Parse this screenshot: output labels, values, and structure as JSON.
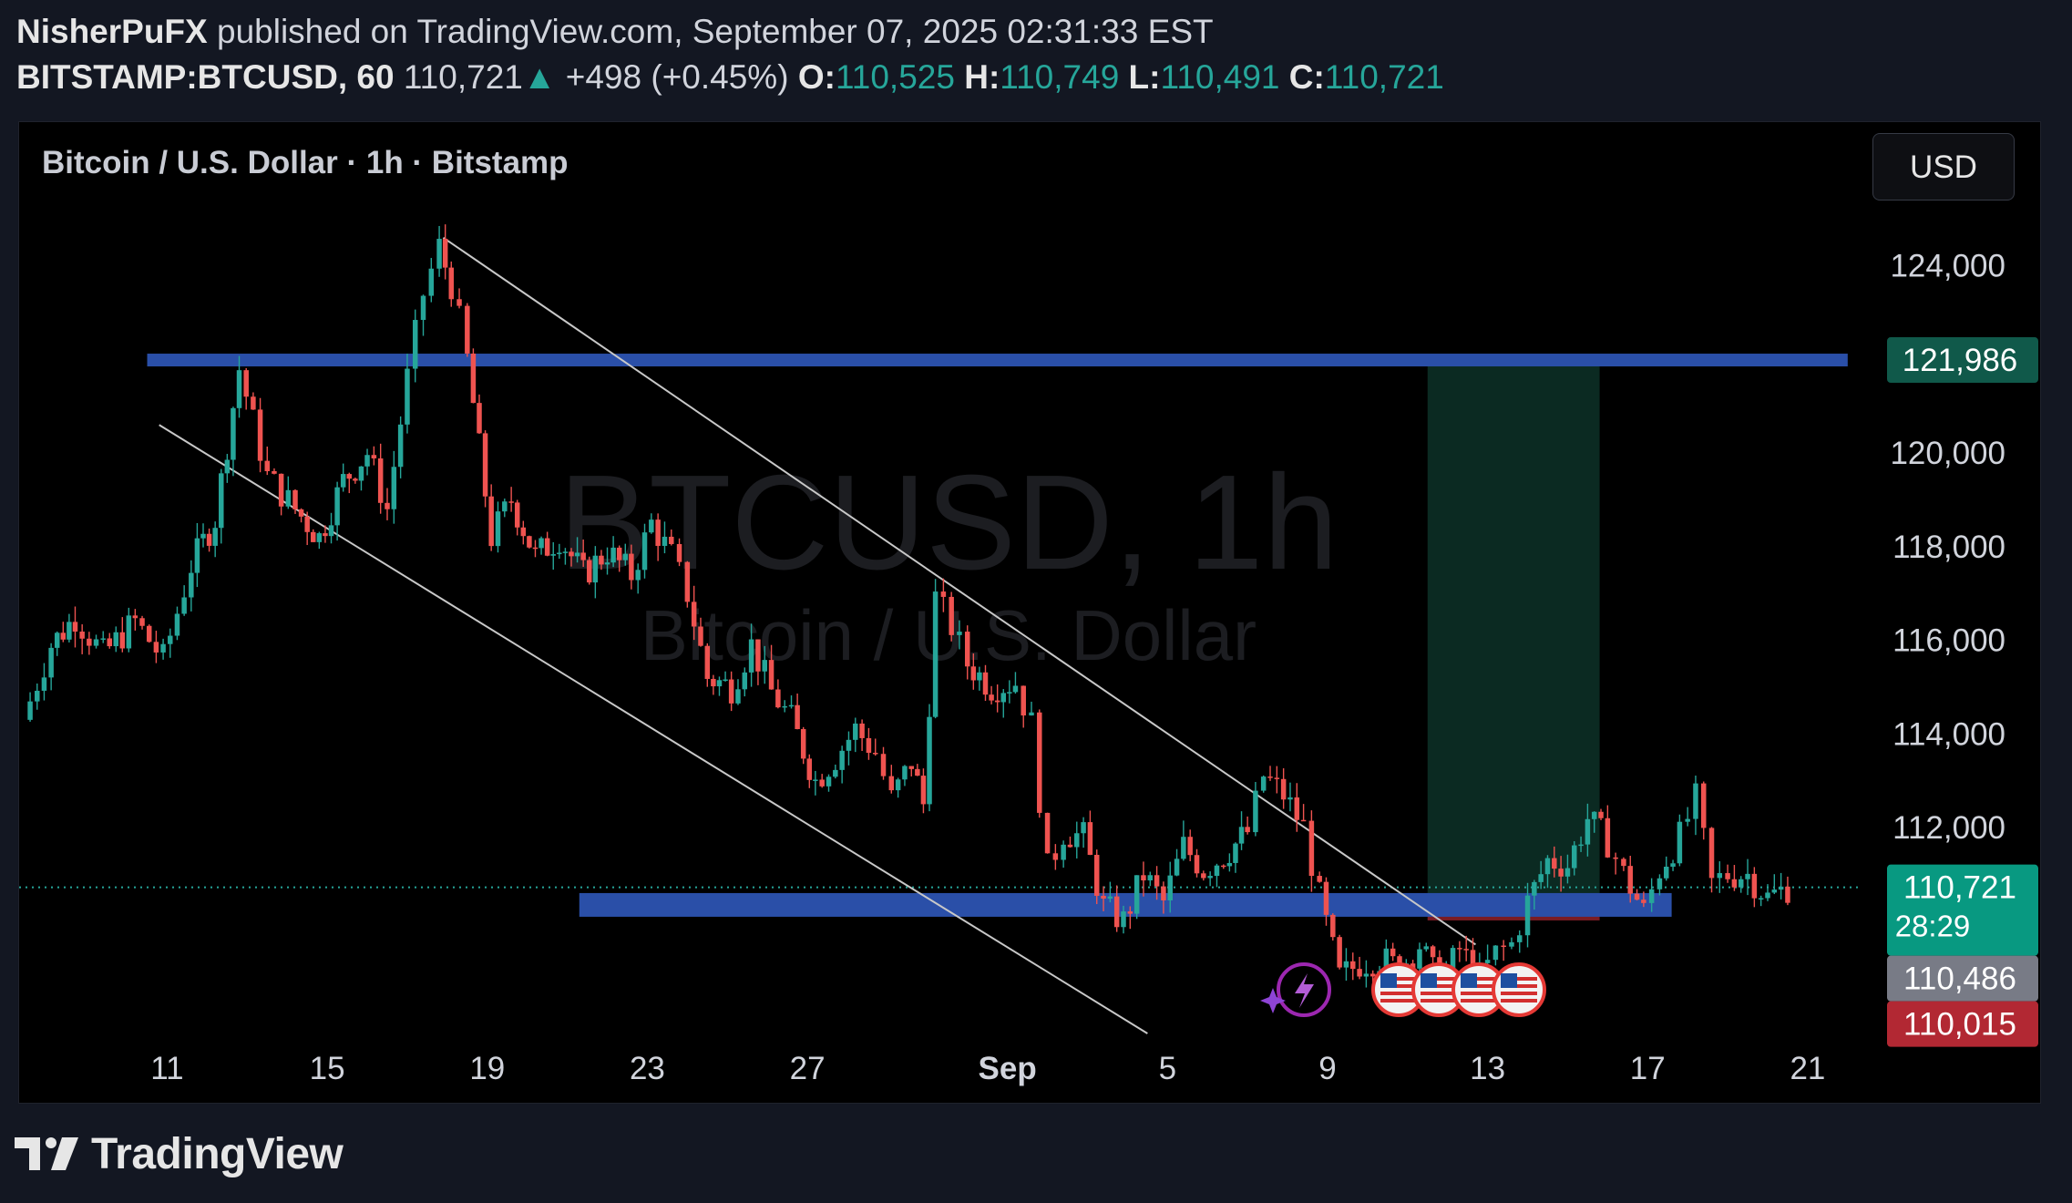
{
  "header": {
    "author": "NisherPuFX",
    "published_text": "published on TradingView.com, September 07, 2025 02:31:33 EST",
    "symbol": "BITSTAMP:BTCUSD, 60",
    "last": "110,721",
    "change_arrow": "▲",
    "change": "+498 (+0.45%)",
    "o_label": "O:",
    "o_value": "110,525",
    "h_label": "H:",
    "h_value": "110,749",
    "l_label": "L:",
    "l_value": "110,491",
    "c_label": "C:",
    "c_value": "110,721"
  },
  "chart_header": {
    "title": "Bitcoin / U.S. Dollar · 1h · Bitstamp",
    "currency_button": "USD"
  },
  "watermark": {
    "line1": "BTCUSD, 1h",
    "line2": "Bitcoin / U.S. Dollar"
  },
  "footer": {
    "brand": "TradingView"
  },
  "colors": {
    "up": "#26a69a",
    "down": "#ef5350",
    "level": "#2a4fa8",
    "target_zone": "#0b2a22",
    "stop_zone": "#7a1c24",
    "trendline": "#c8c8c8"
  },
  "chart_data": {
    "type": "candlestick",
    "timeframe": "1h",
    "x_ticks": [
      "11",
      "15",
      "19",
      "23",
      "27",
      "Sep",
      "5",
      "9",
      "13",
      "17",
      "21"
    ],
    "y_ticks": [
      "124,000",
      "120,000",
      "118,000",
      "116,000",
      "114,000",
      "112,000"
    ],
    "y_tick_values": [
      124000,
      120000,
      118000,
      116000,
      114000,
      112000
    ],
    "ylim": [
      107600,
      125900
    ],
    "x_tick_day_index": [
      0,
      4,
      8,
      12,
      16,
      21,
      25,
      29,
      33,
      37,
      41
    ],
    "xlim_days": [
      -3.7,
      42.3
    ],
    "price_path": [
      [
        -3.6,
        114300
      ],
      [
        -2.9,
        115900
      ],
      [
        -2.3,
        116500
      ],
      [
        -1.6,
        115700
      ],
      [
        -0.8,
        116400
      ],
      [
        -0.1,
        115600
      ],
      [
        0.6,
        117600
      ],
      [
        1.2,
        118600
      ],
      [
        1.8,
        121800
      ],
      [
        2.5,
        119500
      ],
      [
        3.2,
        118800
      ],
      [
        3.8,
        118200
      ],
      [
        4.4,
        119400
      ],
      [
        5.0,
        120000
      ],
      [
        5.5,
        118800
      ],
      [
        6.0,
        121600
      ],
      [
        6.4,
        123400
      ],
      [
        6.8,
        124400
      ],
      [
        7.1,
        123600
      ],
      [
        7.5,
        122000
      ],
      [
        8.1,
        118200
      ],
      [
        8.6,
        119000
      ],
      [
        9.2,
        117800
      ],
      [
        9.8,
        118200
      ],
      [
        10.4,
        117400
      ],
      [
        11.0,
        117900
      ],
      [
        11.6,
        117400
      ],
      [
        12.1,
        118500
      ],
      [
        12.6,
        117800
      ],
      [
        13.0,
        117000
      ],
      [
        13.5,
        115200
      ],
      [
        14.1,
        115000
      ],
      [
        14.6,
        115900
      ],
      [
        15.1,
        114900
      ],
      [
        15.6,
        114300
      ],
      [
        16.2,
        113000
      ],
      [
        16.7,
        113500
      ],
      [
        17.2,
        114100
      ],
      [
        17.7,
        113600
      ],
      [
        18.1,
        112600
      ],
      [
        18.6,
        113400
      ],
      [
        18.9,
        112500
      ],
      [
        19.2,
        116900
      ],
      [
        19.6,
        116300
      ],
      [
        20.0,
        115500
      ],
      [
        20.6,
        115000
      ],
      [
        21.2,
        115100
      ],
      [
        21.6,
        114200
      ],
      [
        22.0,
        111100
      ],
      [
        22.4,
        111900
      ],
      [
        22.9,
        111800
      ],
      [
        23.4,
        110300
      ],
      [
        23.9,
        110000
      ],
      [
        24.4,
        111000
      ],
      [
        24.9,
        110400
      ],
      [
        25.4,
        111600
      ],
      [
        25.9,
        111100
      ],
      [
        26.4,
        111400
      ],
      [
        27.0,
        111900
      ],
      [
        27.4,
        113100
      ],
      [
        27.9,
        112700
      ],
      [
        28.4,
        112000
      ],
      [
        28.8,
        110500
      ],
      [
        29.3,
        108800
      ],
      [
        29.8,
        109100
      ],
      [
        30.3,
        109200
      ],
      [
        30.8,
        109000
      ],
      [
        31.3,
        109500
      ],
      [
        31.8,
        108600
      ],
      [
        32.3,
        109400
      ],
      [
        32.8,
        108800
      ],
      [
        33.2,
        109300
      ],
      [
        33.6,
        109500
      ],
      [
        34.0,
        110400
      ],
      [
        34.5,
        111300
      ],
      [
        35.0,
        111200
      ],
      [
        35.5,
        112200
      ],
      [
        36.0,
        111700
      ],
      [
        36.4,
        111000
      ],
      [
        36.9,
        110200
      ],
      [
        37.3,
        111100
      ],
      [
        37.8,
        111800
      ],
      [
        38.2,
        112600
      ],
      [
        38.6,
        110800
      ],
      [
        39.0,
        111000
      ],
      [
        39.5,
        111000
      ],
      [
        40.0,
        110500
      ],
      [
        40.5,
        110721
      ]
    ],
    "annotations": {
      "resistance_level": {
        "price": 121986,
        "label": "121,986",
        "from_day": -0.5,
        "to_day": 42.0
      },
      "support_zone": {
        "price_low": 110450,
        "price_high": 110950,
        "from_day": 10.3,
        "to_day": 37.6
      },
      "support_line": {
        "price": 110486,
        "from_day": 19.0,
        "to_day": 37.0
      },
      "long_position": {
        "entry": 110486,
        "target": 121986,
        "stop": 110015,
        "from_day": 31.5,
        "to_day": 35.8,
        "entry_label": "110,486",
        "stop_label": "110,015"
      },
      "channel_upper": {
        "from": [
          6.9,
          124600
        ],
        "to": [
          32.7,
          109500
        ]
      },
      "channel_lower": {
        "from": [
          -0.2,
          120600
        ],
        "to": [
          24.5,
          107600
        ]
      },
      "current_price": {
        "price": 110721,
        "label": "110,721",
        "countdown": "28:29"
      }
    }
  }
}
